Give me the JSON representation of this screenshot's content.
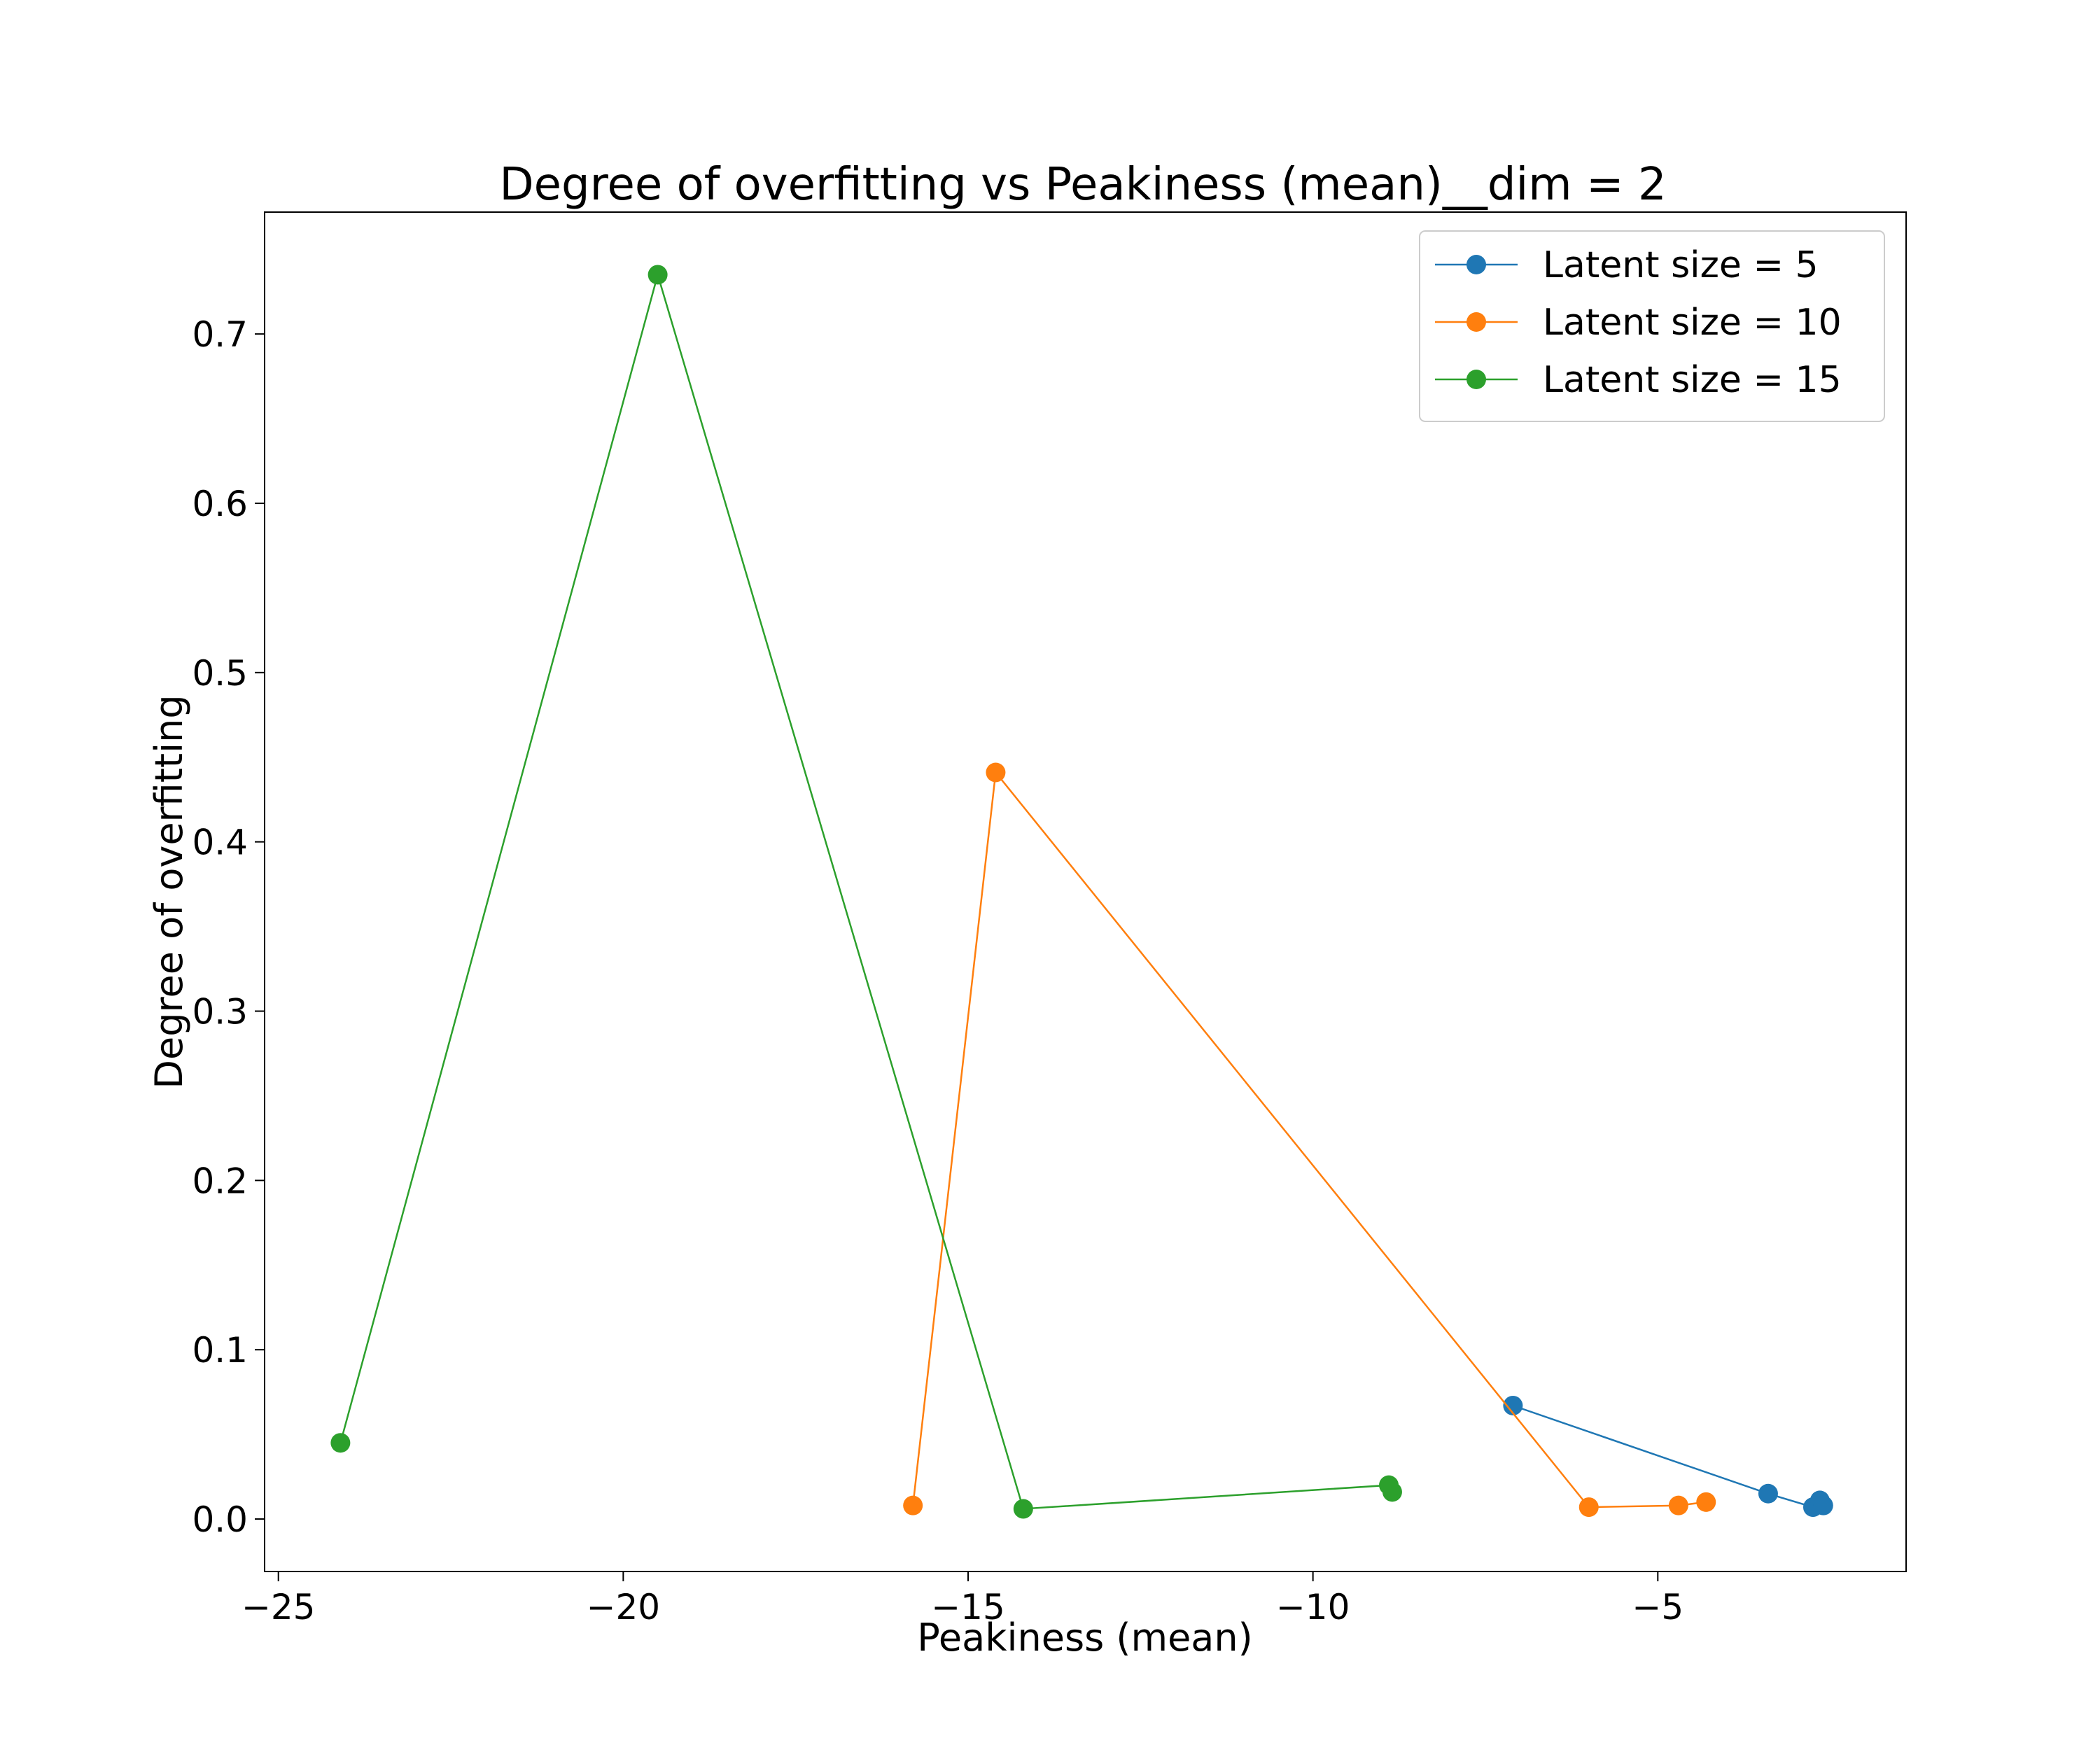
{
  "chart_data": {
    "type": "line",
    "title": "Degree of overfitting vs Peakiness (mean)__dim = 2",
    "xlabel": "Peakiness (mean)",
    "ylabel": "Degree of overfitting",
    "xlim": [
      -25.2,
      -1.4
    ],
    "ylim": [
      -0.031,
      0.772
    ],
    "xticks": [
      -25,
      -20,
      -15,
      -10,
      -5
    ],
    "xtick_labels": [
      "−25",
      "−20",
      "−15",
      "−10",
      "−5"
    ],
    "yticks": [
      0.0,
      0.1,
      0.2,
      0.3,
      0.4,
      0.5,
      0.6,
      0.7
    ],
    "ytick_labels": [
      "0.0",
      "0.1",
      "0.2",
      "0.3",
      "0.4",
      "0.5",
      "0.6",
      "0.7"
    ],
    "grid": false,
    "legend_position": "top-right",
    "series": [
      {
        "name": "Latent size = 5",
        "color": "#1f77b4",
        "x": [
          -7.1,
          -3.4,
          -2.75,
          -2.65,
          -2.6
        ],
        "y": [
          0.067,
          0.015,
          0.007,
          0.011,
          0.008
        ]
      },
      {
        "name": "Latent size = 10",
        "color": "#ff7f0e",
        "x": [
          -15.8,
          -14.6,
          -6.0,
          -4.7,
          -4.3
        ],
        "y": [
          0.008,
          0.441,
          0.007,
          0.008,
          0.01
        ]
      },
      {
        "name": "Latent size = 15",
        "color": "#2ca02c",
        "x": [
          -24.1,
          -19.5,
          -14.2,
          -8.9,
          -8.85
        ],
        "y": [
          0.045,
          0.735,
          0.006,
          0.02,
          0.016
        ]
      }
    ]
  }
}
